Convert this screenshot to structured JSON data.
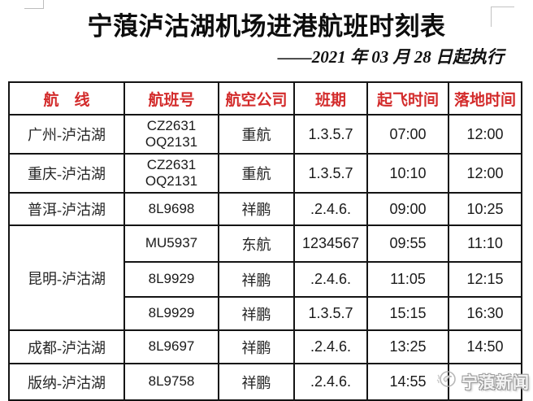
{
  "page": {
    "title": "宁蒗泸沽湖机场进港航班时刻表",
    "subtitle": "——2021 年 03 月 28 日起执行"
  },
  "colors": {
    "header_red": "#d32b2b",
    "border_black": "#141414",
    "watermark_gray": "#9b9b9b"
  },
  "watermark": {
    "logo_icon": "news-outlet-logo-icon",
    "text": "宁蒗新闻"
  },
  "table": {
    "columns": [
      {
        "label": "航　线"
      },
      {
        "label": "航班号"
      },
      {
        "label": "航空公司"
      },
      {
        "label": "班期"
      },
      {
        "label": "起飞时间"
      },
      {
        "label": "落地时间"
      }
    ],
    "col_classes": [
      "route",
      "flight",
      "airline",
      "days",
      "time",
      "time"
    ],
    "col_names": [
      "cell-route",
      "cell-flight-number",
      "cell-airline",
      "cell-schedule-days",
      "cell-departure-time",
      "cell-arrival-time"
    ],
    "rows": [
      {
        "cells": [
          {
            "col": 0,
            "text": "广州-泸沽湖"
          },
          {
            "col": 1,
            "text": "CZ2631\nOQ2131"
          },
          {
            "col": 2,
            "text": "重航"
          },
          {
            "col": 3,
            "text": "1.3.5.7"
          },
          {
            "col": 4,
            "text": "07:00"
          },
          {
            "col": 5,
            "text": "12:00"
          }
        ]
      },
      {
        "cells": [
          {
            "col": 0,
            "text": "重庆-泸沽湖"
          },
          {
            "col": 1,
            "text": "CZ2631\nOQ2131"
          },
          {
            "col": 2,
            "text": "重航"
          },
          {
            "col": 3,
            "text": "1.3.5.7"
          },
          {
            "col": 4,
            "text": "10:10"
          },
          {
            "col": 5,
            "text": "12:00"
          }
        ]
      },
      {
        "cells": [
          {
            "col": 0,
            "text": "普洱-泸沽湖"
          },
          {
            "col": 1,
            "text": "8L9698"
          },
          {
            "col": 2,
            "text": "祥鹏"
          },
          {
            "col": 3,
            "text": ".2.4.6."
          },
          {
            "col": 4,
            "text": "09:00"
          },
          {
            "col": 5,
            "text": "10:25"
          }
        ]
      },
      {
        "cells": [
          {
            "col": 0,
            "text": "昆明-泸沽湖",
            "rowspan": 3
          },
          {
            "col": 1,
            "text": "MU5937"
          },
          {
            "col": 2,
            "text": "东航"
          },
          {
            "col": 3,
            "text": "1234567"
          },
          {
            "col": 4,
            "text": "09:55"
          },
          {
            "col": 5,
            "text": "11:10"
          }
        ]
      },
      {
        "cells": [
          {
            "col": 1,
            "text": "8L9929"
          },
          {
            "col": 2,
            "text": "祥鹏"
          },
          {
            "col": 3,
            "text": ".2.4.6."
          },
          {
            "col": 4,
            "text": "11:05"
          },
          {
            "col": 5,
            "text": "12:15"
          }
        ]
      },
      {
        "cells": [
          {
            "col": 1,
            "text": "8L9929"
          },
          {
            "col": 2,
            "text": "祥鹏"
          },
          {
            "col": 3,
            "text": "1.3.5.7"
          },
          {
            "col": 4,
            "text": "15:15"
          },
          {
            "col": 5,
            "text": "16:30"
          }
        ]
      },
      {
        "cells": [
          {
            "col": 0,
            "text": "成都-泸沽湖"
          },
          {
            "col": 1,
            "text": "8L9697"
          },
          {
            "col": 2,
            "text": "祥鹏"
          },
          {
            "col": 3,
            "text": ".2.4.6."
          },
          {
            "col": 4,
            "text": "13:25"
          },
          {
            "col": 5,
            "text": "14:50"
          }
        ]
      },
      {
        "cells": [
          {
            "col": 0,
            "text": "版纳-泸沽湖"
          },
          {
            "col": 1,
            "text": "8L9758"
          },
          {
            "col": 2,
            "text": "祥鹏"
          },
          {
            "col": 3,
            "text": ".2.4.6."
          },
          {
            "col": 4,
            "text": "14:55"
          },
          {
            "col": 5,
            "text": ""
          }
        ]
      }
    ]
  }
}
